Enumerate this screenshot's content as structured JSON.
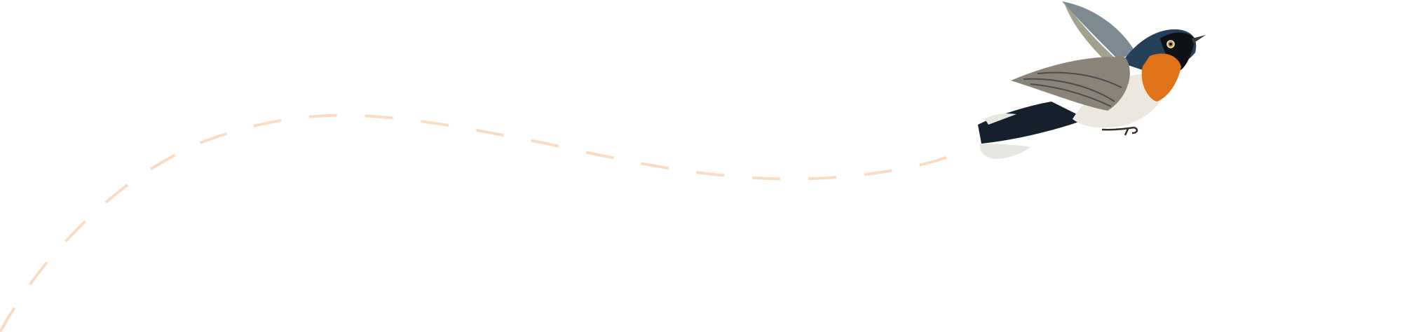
{
  "colors": {
    "background": "#ffffff",
    "flight_path": "#fcdcc0",
    "bird_back": "#1f3346",
    "bird_wing": "#8a8478",
    "bird_throat": "#e0731a",
    "bird_belly": "#ece8e0"
  },
  "illustration": {
    "subject": "bird-flying",
    "path_style": "dashed"
  }
}
